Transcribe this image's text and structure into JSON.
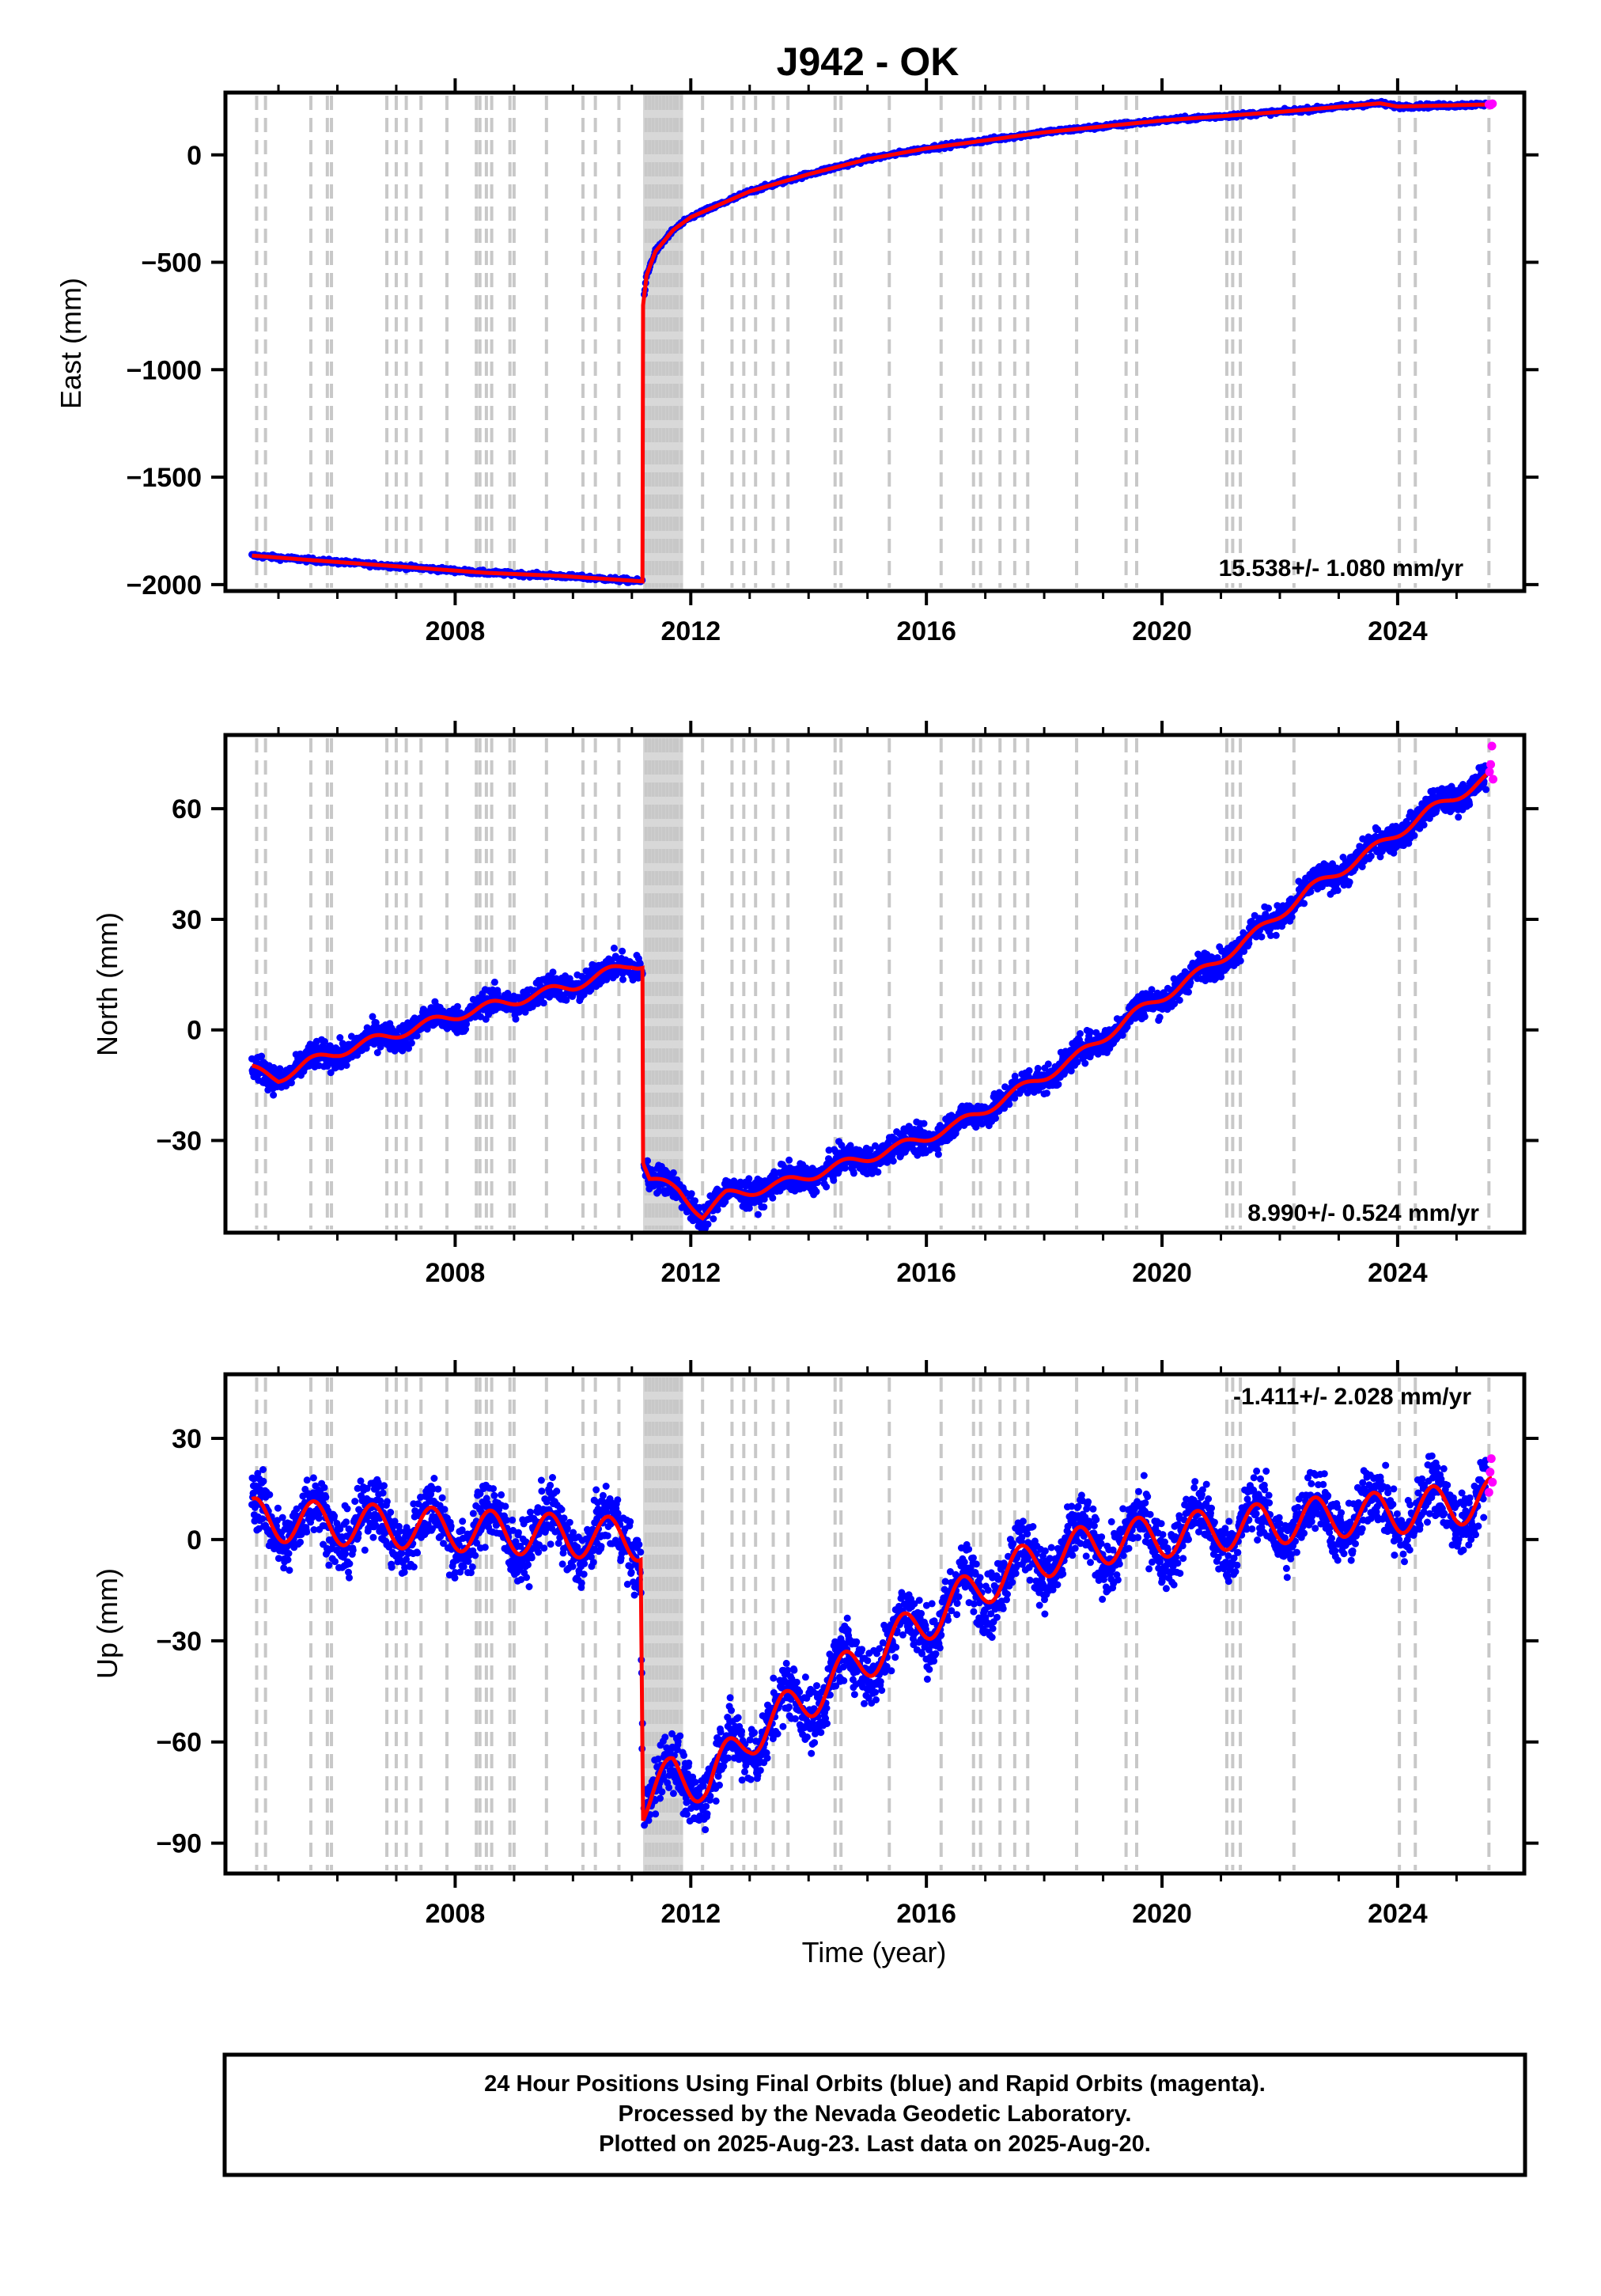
{
  "chart_title": "J942 - OK",
  "x_axis_label": "Time (year)",
  "footer": {
    "line1": "24 Hour Positions Using Final Orbits (blue) and Rapid Orbits (magenta).",
    "line2": "Processed by the Nevada Geodetic Laboratory.",
    "line3": "Plotted on 2025-Aug-23. Last data on 2025-Aug-20."
  },
  "colors": {
    "final_orbits": "#0000ff",
    "rapid_orbits": "#ff00ff",
    "trend": "#ff0000",
    "equipment_lines": "#c8c8c8"
  },
  "chart_data": [
    {
      "type": "scatter",
      "component": "east",
      "ylabel": "East (mm)",
      "rate_text": "15.538+/- 1.080 mm/yr",
      "rate_position": "bottom-right",
      "xlim": [
        2004.1,
        2026.15
      ],
      "ylim": [
        -2030,
        290
      ],
      "xticks": [
        2008,
        2012,
        2016,
        2020,
        2024
      ],
      "yticks": [
        -2000,
        -1500,
        -1000,
        -500,
        0
      ],
      "ytick_labels": [
        "−2000",
        "−1500",
        "−1000",
        "−500",
        "0"
      ],
      "grid": false,
      "trend_knots": [
        {
          "t": 2004.55,
          "v": -1865
        },
        {
          "t": 2005.5,
          "v": -1885
        },
        {
          "t": 2007.0,
          "v": -1915
        },
        {
          "t": 2008.5,
          "v": -1945
        },
        {
          "t": 2009.8,
          "v": -1960
        },
        {
          "t": 2011.18,
          "v": -1985
        },
        {
          "t": 2011.19,
          "v": -700
        },
        {
          "t": 2011.25,
          "v": -560
        },
        {
          "t": 2011.4,
          "v": -450
        },
        {
          "t": 2011.7,
          "v": -350
        },
        {
          "t": 2012.0,
          "v": -290
        },
        {
          "t": 2013.0,
          "v": -170
        },
        {
          "t": 2014.0,
          "v": -90
        },
        {
          "t": 2015.0,
          "v": -20
        },
        {
          "t": 2016.0,
          "v": 30
        },
        {
          "t": 2018.0,
          "v": 105
        },
        {
          "t": 2020.0,
          "v": 160
        },
        {
          "t": 2022.0,
          "v": 200
        },
        {
          "t": 2023.7,
          "v": 240
        },
        {
          "t": 2024.0,
          "v": 225
        },
        {
          "t": 2025.6,
          "v": 235
        }
      ],
      "rapid_points": [
        {
          "t": 2025.55,
          "v": 235
        },
        {
          "t": 2025.58,
          "v": 232
        },
        {
          "t": 2025.61,
          "v": 238
        }
      ]
    },
    {
      "type": "scatter",
      "component": "north",
      "ylabel": "North (mm)",
      "rate_text": "8.990+/- 0.524 mm/yr",
      "rate_position": "bottom-right",
      "xlim": [
        2004.1,
        2026.15
      ],
      "ylim": [
        -55,
        80
      ],
      "xticks": [
        2008,
        2012,
        2016,
        2020,
        2024
      ],
      "yticks": [
        -30,
        0,
        30,
        60
      ],
      "ytick_labels": [
        "−30",
        "0",
        "30",
        "60"
      ],
      "grid": false,
      "trend_knots": [
        {
          "t": 2004.55,
          "v": -11
        },
        {
          "t": 2005.0,
          "v": -13
        },
        {
          "t": 2005.5,
          "v": -9
        },
        {
          "t": 2006.0,
          "v": -6
        },
        {
          "t": 2007.0,
          "v": -1
        },
        {
          "t": 2008.0,
          "v": 4
        },
        {
          "t": 2009.0,
          "v": 8
        },
        {
          "t": 2010.0,
          "v": 12
        },
        {
          "t": 2011.0,
          "v": 18
        },
        {
          "t": 2011.18,
          "v": 18
        },
        {
          "t": 2011.19,
          "v": -35
        },
        {
          "t": 2011.3,
          "v": -40
        },
        {
          "t": 2011.8,
          "v": -44
        },
        {
          "t": 2012.2,
          "v": -50
        },
        {
          "t": 2012.6,
          "v": -45
        },
        {
          "t": 2013.5,
          "v": -42
        },
        {
          "t": 2014.5,
          "v": -37
        },
        {
          "t": 2015.5,
          "v": -32
        },
        {
          "t": 2016.5,
          "v": -26
        },
        {
          "t": 2017.5,
          "v": -17
        },
        {
          "t": 2018.5,
          "v": -8
        },
        {
          "t": 2019.5,
          "v": 4
        },
        {
          "t": 2020.5,
          "v": 14
        },
        {
          "t": 2021.5,
          "v": 25
        },
        {
          "t": 2022.5,
          "v": 38
        },
        {
          "t": 2023.5,
          "v": 48
        },
        {
          "t": 2024.5,
          "v": 59
        },
        {
          "t": 2025.6,
          "v": 69
        }
      ],
      "rapid_points": [
        {
          "t": 2025.56,
          "v": 70
        },
        {
          "t": 2025.58,
          "v": 72
        },
        {
          "t": 2025.6,
          "v": 77
        },
        {
          "t": 2025.62,
          "v": 68
        }
      ]
    },
    {
      "type": "scatter",
      "component": "up",
      "ylabel": "Up (mm)",
      "rate_text": "-1.411+/- 2.028 mm/yr",
      "rate_position": "top-right",
      "xlim": [
        2004.1,
        2026.15
      ],
      "ylim": [
        -99,
        49
      ],
      "xticks": [
        2008,
        2012,
        2016,
        2020,
        2024
      ],
      "yticks": [
        -90,
        -60,
        -30,
        0,
        30
      ],
      "ytick_labels": [
        "−90",
        "−60",
        "−30",
        "0",
        "30"
      ],
      "grid": false,
      "trend_knots": [
        {
          "t": 2004.55,
          "v": 6
        },
        {
          "t": 2011.15,
          "v": 0
        },
        {
          "t": 2011.19,
          "v": -78
        },
        {
          "t": 2011.7,
          "v": -70
        },
        {
          "t": 2012.3,
          "v": -72
        },
        {
          "t": 2013.0,
          "v": -58
        },
        {
          "t": 2014.0,
          "v": -47
        },
        {
          "t": 2015.0,
          "v": -35
        },
        {
          "t": 2016.0,
          "v": -24
        },
        {
          "t": 2017.0,
          "v": -13
        },
        {
          "t": 2018.0,
          "v": -5
        },
        {
          "t": 2019.0,
          "v": -1
        },
        {
          "t": 2020.0,
          "v": 1
        },
        {
          "t": 2021.0,
          "v": 3
        },
        {
          "t": 2022.0,
          "v": 5
        },
        {
          "t": 2023.0,
          "v": 7
        },
        {
          "t": 2024.0,
          "v": 8
        },
        {
          "t": 2025.6,
          "v": 12
        }
      ],
      "rapid_points": [
        {
          "t": 2025.55,
          "v": 14
        },
        {
          "t": 2025.57,
          "v": 20
        },
        {
          "t": 2025.59,
          "v": 24
        },
        {
          "t": 2025.61,
          "v": 17
        }
      ]
    }
  ],
  "equipment_change_years": [
    2004.63,
    2004.78,
    2005.55,
    2005.83,
    2005.9,
    2006.84,
    2007.0,
    2007.17,
    2007.42,
    2007.86,
    2008.36,
    2008.42,
    2008.53,
    2008.62,
    2008.93,
    2009.0,
    2009.55,
    2010.17,
    2010.38,
    2010.78,
    2011.24,
    2011.3,
    2011.36,
    2011.42,
    2011.48,
    2011.54,
    2011.6,
    2011.66,
    2011.72,
    2011.77,
    2011.84,
    2012.2,
    2012.7,
    2012.9,
    2013.1,
    2013.4,
    2013.65,
    2014.45,
    2014.55,
    2015.37,
    2016.25,
    2016.8,
    2016.92,
    2017.25,
    2017.5,
    2017.72,
    2018.55,
    2019.39,
    2019.57,
    2021.1,
    2021.2,
    2021.33,
    2022.24,
    2024.03,
    2024.3,
    2025.55
  ],
  "dense_band_years": [
    2011.19,
    2011.87
  ]
}
